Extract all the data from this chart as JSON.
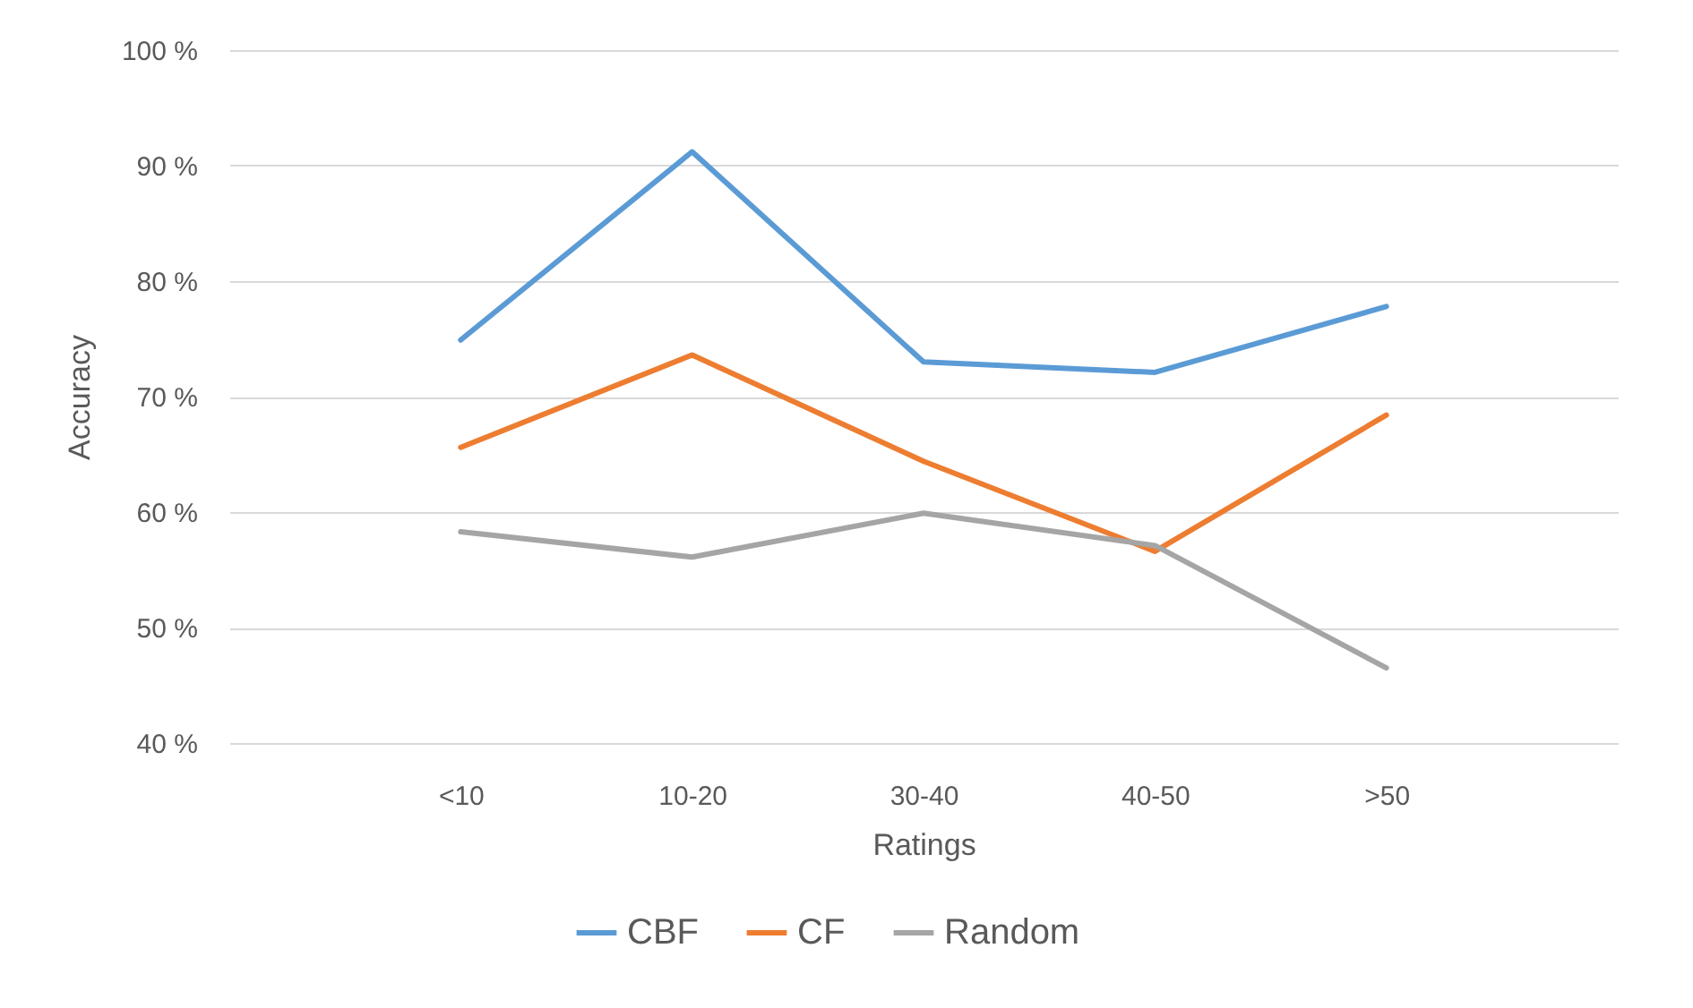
{
  "chart_data": {
    "type": "line",
    "xlabel": "Ratings",
    "ylabel": "Accuracy",
    "categories": [
      "<10",
      "10-20",
      "30-40",
      "40-50",
      ">50"
    ],
    "series": [
      {
        "name": "CBF",
        "color": "#5b9bd5",
        "values": [
          74.9,
          91.2,
          73.0,
          72.1,
          77.8
        ]
      },
      {
        "name": "CF",
        "color": "#ed7d31",
        "values": [
          65.6,
          73.6,
          64.4,
          56.6,
          68.4
        ]
      },
      {
        "name": "Random",
        "color": "#a5a5a5",
        "values": [
          58.3,
          56.1,
          59.9,
          57.1,
          46.5
        ]
      }
    ],
    "ylim": [
      40,
      100
    ],
    "yticks": [
      {
        "value": 40,
        "label": "40 %"
      },
      {
        "value": 50,
        "label": "50 %"
      },
      {
        "value": 60,
        "label": "60 %"
      },
      {
        "value": 70,
        "label": "70 %"
      },
      {
        "value": 80,
        "label": "80 %"
      },
      {
        "value": 90,
        "label": "90 %"
      },
      {
        "value": 100,
        "label": "100 %"
      }
    ],
    "grid": "y",
    "legend": "bottom",
    "marker": "none",
    "line_style": "solid"
  }
}
